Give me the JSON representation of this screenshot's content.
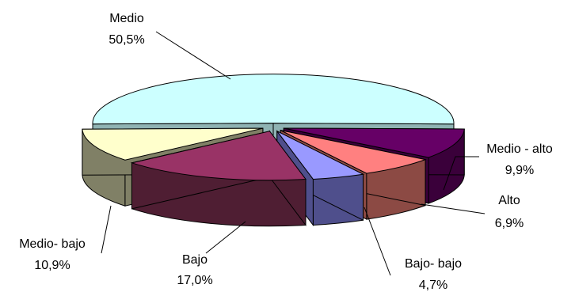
{
  "chart_data": {
    "type": "pie",
    "style": "3d-exploded",
    "legend": "none",
    "slices": [
      {
        "name": "Medio",
        "value": 50.5,
        "label_value": "50,5%",
        "color": "#CCFFFF",
        "side_color": "#8FB3B3"
      },
      {
        "name": "Medio - alto",
        "value": 9.9,
        "label_value": "9,9%",
        "color": "#660066",
        "side_color": "#3A003A"
      },
      {
        "name": "Alto",
        "value": 6.9,
        "label_value": "6,9%",
        "color": "#FF8080",
        "side_color": "#8C4A44"
      },
      {
        "name": "Bajo- bajo",
        "value": 4.7,
        "label_value": "4,7%",
        "color": "#9999FF",
        "side_color": "#4F4F8C"
      },
      {
        "name": "Bajo",
        "value": 17.0,
        "label_value": "17,0%",
        "color": "#993366",
        "side_color": "#4F1E33"
      },
      {
        "name": "Medio- bajo",
        "value": 10.9,
        "label_value": "10,9%",
        "color": "#FFFFCC",
        "side_color": "#808066"
      }
    ]
  }
}
